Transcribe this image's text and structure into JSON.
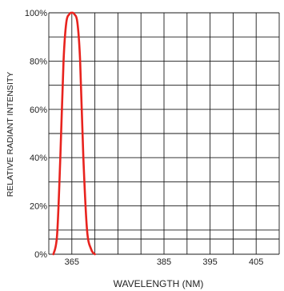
{
  "chart_data": {
    "type": "line",
    "title": "",
    "xlabel": "WAVELENGTH (NM)",
    "ylabel": "RELATIVE RADIANT INTENSITY",
    "xlim": [
      360,
      410
    ],
    "ylim": [
      0,
      100
    ],
    "x_ticks": [
      365,
      385,
      395,
      405
    ],
    "x_tick_labels": [
      "365",
      "385",
      "395",
      "405"
    ],
    "y_ticks": [
      0,
      20,
      40,
      60,
      80,
      100
    ],
    "y_tick_labels": [
      "0%",
      "20%",
      "40%",
      "60%",
      "80%",
      "100%"
    ],
    "grid": true,
    "legend": "none",
    "series": [
      {
        "color": "#e8231e",
        "x": [
          361.0,
          361.8,
          362.5,
          363.2,
          363.8,
          364.5,
          365.0,
          365.5,
          366.2,
          366.8,
          367.5,
          368.3,
          369.2,
          370.0
        ],
        "y": [
          0,
          8,
          40,
          80,
          96,
          99.5,
          100,
          99.5,
          96,
          80,
          40,
          10,
          2,
          0
        ]
      }
    ]
  }
}
